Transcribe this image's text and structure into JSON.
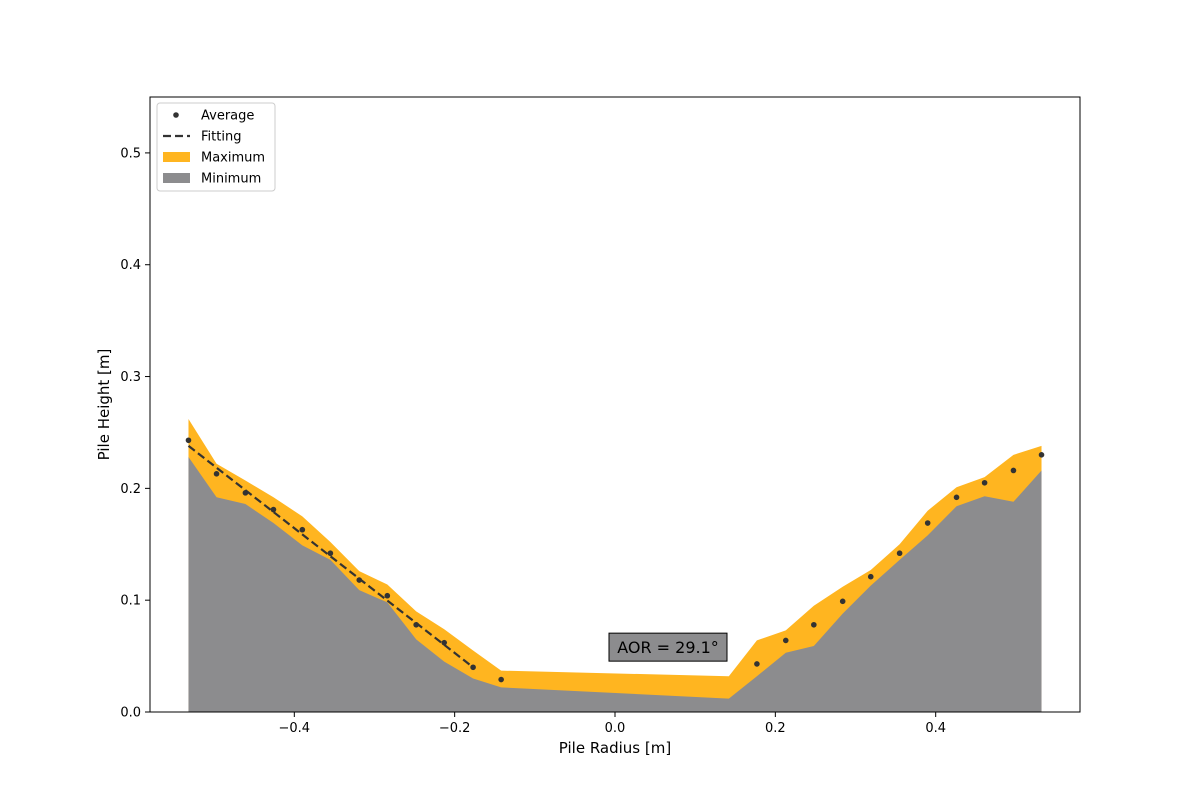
{
  "chart_data": {
    "type": "area",
    "title": "",
    "xlabel": "Pile Radius [m]",
    "ylabel": "Pile Height [m]",
    "xlim": [
      -0.58,
      0.58
    ],
    "ylim": [
      0.0,
      0.55
    ],
    "xticks": [
      -0.4,
      -0.2,
      0.0,
      0.2,
      0.4
    ],
    "xtick_labels": [
      "−0.4",
      "−0.2",
      "0.0",
      "0.2",
      "0.4"
    ],
    "yticks": [
      0.0,
      0.1,
      0.2,
      0.3,
      0.4,
      0.5
    ],
    "ytick_labels": [
      "0.0",
      "0.1",
      "0.2",
      "0.3",
      "0.4",
      "0.5"
    ],
    "grid": false,
    "legend_position": "top-left",
    "legend": [
      {
        "label": "Average",
        "kind": "marker"
      },
      {
        "label": "Fitting",
        "kind": "dashed-line"
      },
      {
        "label": "Maximum",
        "kind": "patch"
      },
      {
        "label": "Minimum",
        "kind": "patch"
      }
    ],
    "annotation": {
      "text": "AOR = 29.1°",
      "x": 0.0,
      "y": 0.058
    },
    "x": [
      -0.532,
      -0.497,
      -0.461,
      -0.426,
      -0.39,
      -0.355,
      -0.319,
      -0.284,
      -0.248,
      -0.213,
      -0.177,
      -0.142,
      0.142,
      0.177,
      0.213,
      0.248,
      0.284,
      0.319,
      0.355,
      0.39,
      0.426,
      0.461,
      0.497,
      0.532
    ],
    "series": [
      {
        "name": "Maximum",
        "color": "#ffb520",
        "values": [
          0.262,
          0.222,
          0.207,
          0.192,
          0.175,
          0.152,
          0.126,
          0.114,
          0.09,
          0.074,
          0.055,
          0.037,
          0.032,
          0.064,
          0.073,
          0.095,
          0.112,
          0.127,
          0.15,
          0.18,
          0.201,
          0.21,
          0.23,
          0.238
        ]
      },
      {
        "name": "Minimum",
        "color": "#8c8c8e",
        "values": [
          0.228,
          0.192,
          0.186,
          0.169,
          0.149,
          0.136,
          0.109,
          0.098,
          0.065,
          0.045,
          0.03,
          0.022,
          0.012,
          0.032,
          0.053,
          0.059,
          0.088,
          0.113,
          0.136,
          0.158,
          0.184,
          0.193,
          0.188,
          0.216
        ]
      },
      {
        "name": "Average",
        "color": "#333333",
        "values": [
          0.243,
          0.213,
          0.196,
          0.181,
          0.163,
          0.142,
          0.118,
          0.104,
          0.078,
          0.062,
          0.04,
          0.029,
          null,
          0.043,
          0.064,
          0.078,
          0.099,
          0.121,
          0.142,
          0.169,
          0.192,
          0.205,
          0.216,
          0.23
        ]
      },
      {
        "name": "Fitting",
        "color": "#333333",
        "x": [
          -0.532,
          -0.177
        ],
        "values": [
          0.238,
          0.04
        ]
      }
    ]
  }
}
